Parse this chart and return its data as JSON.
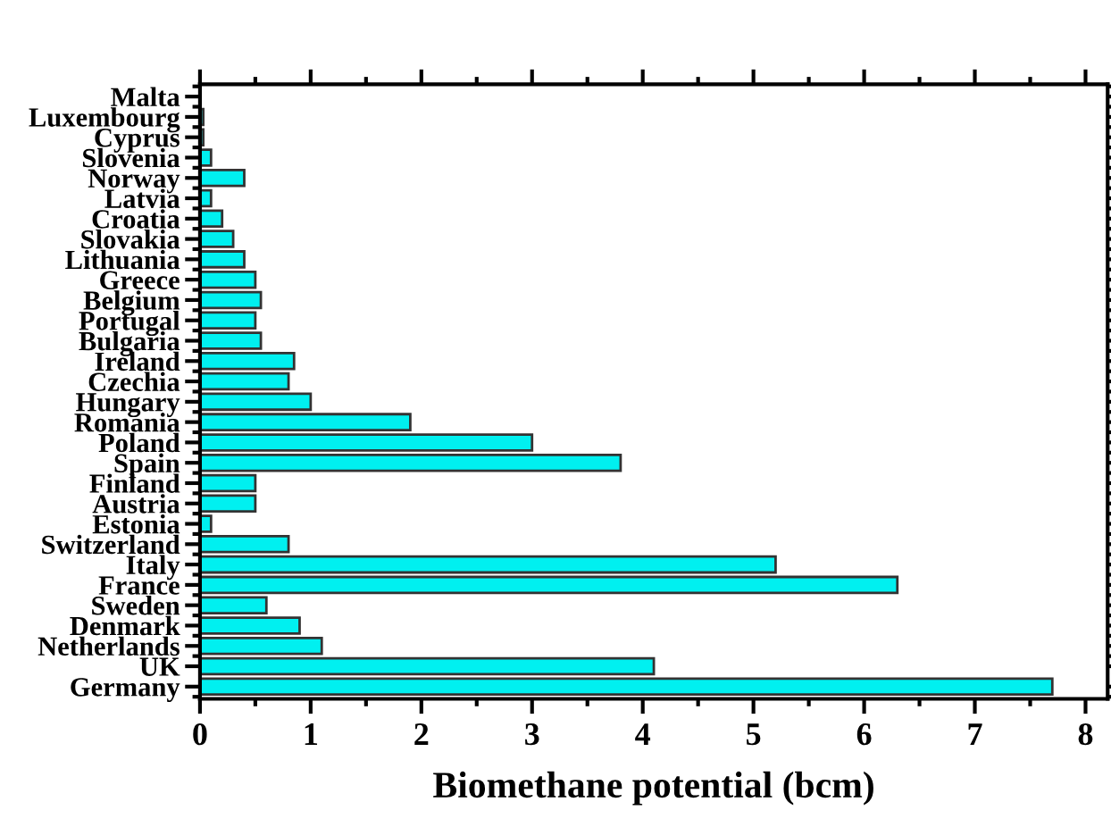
{
  "chart_data": {
    "type": "bar",
    "orientation": "horizontal",
    "xlabel": "Biomethane potential (bcm)",
    "categories": [
      "Malta",
      "Luxembourg",
      "Cyprus",
      "Slovenia",
      "Norway",
      "Latvia",
      "Croatia",
      "Slovakia",
      "Lithuania",
      "Greece",
      "Belgium",
      "Portugal",
      "Bulgaria",
      "Ireland",
      "Czechia",
      "Hungary",
      "Romania",
      "Poland",
      "Spain",
      "Finland",
      "Austria",
      "Estonia",
      "Switzerland",
      "Italy",
      "France",
      "Sweden",
      "Denmark",
      "Netherlands",
      "UK",
      "Germany"
    ],
    "values": [
      null,
      0.03,
      0.03,
      0.1,
      0.4,
      0.1,
      0.2,
      0.3,
      0.4,
      0.5,
      0.55,
      0.5,
      0.55,
      0.85,
      0.8,
      1.0,
      1.9,
      3.0,
      3.8,
      0.5,
      0.5,
      0.1,
      0.8,
      5.2,
      6.3,
      0.6,
      0.9,
      1.1,
      4.1,
      7.7
    ],
    "color": "#00f0f0",
    "xlim": [
      0,
      8.2
    ],
    "xticks": [
      0,
      1,
      2,
      3,
      4,
      5,
      6,
      7,
      8
    ],
    "grid": false
  }
}
